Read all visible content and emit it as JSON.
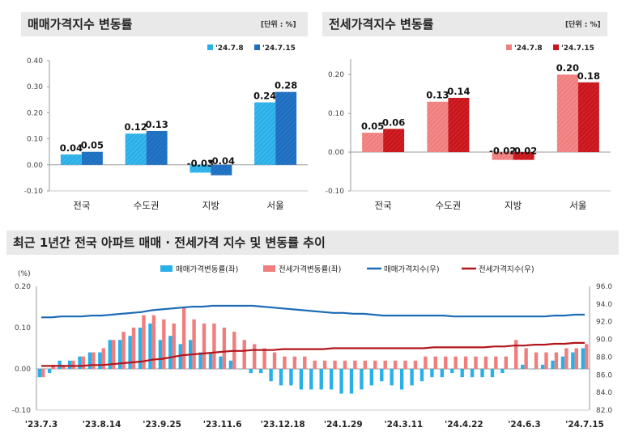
{
  "sale_panel": {
    "title": "매매가격지수 변동률",
    "unit": "[단위 : %]"
  },
  "jeonse_panel": {
    "title": "전세가격지수 변동률",
    "unit": "[단위 : %]"
  },
  "trend_panel": {
    "title": "최근 1년간 전국 아파트 매매 · 전세가격 지수 및 변동률 추이"
  },
  "colors": {
    "sale_prev": "#29b0e8",
    "sale_curr": "#1e6fc0",
    "jeonse_prev": "#f07e7e",
    "jeonse_curr": "#c9161d",
    "sale_index_line": "#1d6bb5",
    "jeonse_index_line": "#b2151b",
    "title_bg": "#e9e9e9"
  },
  "chart_data": [
    {
      "type": "bar",
      "categories": [
        "전국",
        "수도권",
        "지방",
        "서울"
      ],
      "series": [
        {
          "name": "'24.7.8",
          "values": [
            0.04,
            0.12,
            -0.03,
            0.24
          ]
        },
        {
          "name": "'24.7.15",
          "values": [
            0.05,
            0.13,
            -0.04,
            0.28
          ]
        }
      ],
      "data_labels": [
        [
          "0.04",
          "0.12",
          "-0.03",
          "0.24"
        ],
        [
          "0.05",
          "0.13",
          "-0.04",
          "0.28"
        ]
      ],
      "ylim": [
        -0.1,
        0.4
      ],
      "yticks": [
        "0.40",
        "0.30",
        "0.20",
        "0.10",
        "0.00",
        "-0.10"
      ],
      "ytick_values": [
        0.4,
        0.3,
        0.2,
        0.1,
        0.0,
        -0.1
      ],
      "legend": "top-right",
      "grid": false
    },
    {
      "type": "bar",
      "categories": [
        "전국",
        "수도권",
        "지방",
        "서울"
      ],
      "series": [
        {
          "name": "'24.7.8",
          "values": [
            0.05,
            0.13,
            -0.02,
            0.2
          ]
        },
        {
          "name": "'24.7.15",
          "values": [
            0.06,
            0.14,
            -0.02,
            0.18
          ]
        }
      ],
      "data_labels": [
        [
          "0.05",
          "0.13",
          "-0.02",
          "0.20"
        ],
        [
          "0.06",
          "0.14",
          "-0.02",
          "0.18"
        ]
      ],
      "ylim": [
        -0.1,
        0.24
      ],
      "yticks": [
        "0.20",
        "0.10",
        "0.00",
        "-0.10"
      ],
      "ytick_values": [
        0.2,
        0.1,
        0.0,
        -0.1
      ],
      "legend": "top-right",
      "grid": false
    },
    {
      "type": "bar",
      "y_unit": "(%)",
      "ylim": [
        -0.1,
        0.2
      ],
      "yticks": [
        "0.20",
        "0.10",
        "0.00",
        "-0.10"
      ],
      "ytick_values": [
        0.2,
        0.1,
        0.0,
        -0.1
      ],
      "y2lim": [
        82.0,
        96.0
      ],
      "y2ticks": [
        "96.0",
        "94.0",
        "92.0",
        "90.0",
        "88.0",
        "86.0",
        "84.0",
        "82.0"
      ],
      "y2tick_values": [
        96,
        94,
        92,
        90,
        88,
        86,
        84,
        82
      ],
      "xticks": [
        "'23.7.3",
        "'23.8.14",
        "'23.9.25",
        "'23.11.6",
        "'23.12.18",
        "'24.1.29",
        "'24.3.11",
        "'24.4.22",
        "'24.6.3",
        "'24.7.15"
      ],
      "xtick_index": [
        0,
        6,
        12,
        18,
        24,
        30,
        36,
        42,
        48,
        54
      ],
      "legend": "top",
      "grid": false,
      "series": [
        {
          "name": "매매가격변동률(좌)",
          "kind": "bar",
          "axis": "left",
          "values": [
            -0.02,
            -0.01,
            0.02,
            0.02,
            0.03,
            0.04,
            0.04,
            0.07,
            0.07,
            0.08,
            0.1,
            0.11,
            0.07,
            0.08,
            0.06,
            0.07,
            0.04,
            0.04,
            0.03,
            0.02,
            0.0,
            -0.01,
            -0.01,
            -0.03,
            -0.04,
            -0.04,
            -0.05,
            -0.05,
            -0.05,
            -0.05,
            -0.06,
            -0.06,
            -0.05,
            -0.04,
            -0.03,
            -0.04,
            -0.05,
            -0.04,
            -0.03,
            -0.02,
            -0.02,
            -0.01,
            -0.02,
            -0.02,
            -0.02,
            -0.02,
            -0.01,
            0.0,
            0.01,
            0.0,
            0.01,
            0.02,
            0.03,
            0.04,
            0.05
          ]
        },
        {
          "name": "전세가격변동률(좌)",
          "kind": "bar",
          "axis": "left",
          "values": [
            -0.02,
            0.01,
            0.01,
            0.02,
            0.03,
            0.04,
            0.05,
            0.07,
            0.09,
            0.1,
            0.13,
            0.13,
            0.12,
            0.11,
            0.15,
            0.12,
            0.11,
            0.11,
            0.1,
            0.09,
            0.07,
            0.06,
            0.05,
            0.04,
            0.03,
            0.03,
            0.03,
            0.02,
            0.02,
            0.02,
            0.02,
            0.02,
            0.02,
            0.02,
            0.02,
            0.02,
            0.02,
            0.02,
            0.03,
            0.03,
            0.03,
            0.03,
            0.03,
            0.03,
            0.03,
            0.03,
            0.03,
            0.07,
            0.05,
            0.04,
            0.04,
            0.04,
            0.05,
            0.05,
            0.06
          ]
        },
        {
          "name": "매매가격지수(우)",
          "kind": "line",
          "axis": "right",
          "values": [
            92.5,
            92.5,
            92.6,
            92.6,
            92.6,
            92.7,
            92.7,
            92.8,
            92.9,
            93.0,
            93.1,
            93.3,
            93.4,
            93.5,
            93.6,
            93.7,
            93.7,
            93.8,
            93.8,
            93.8,
            93.8,
            93.8,
            93.7,
            93.6,
            93.5,
            93.4,
            93.3,
            93.2,
            93.1,
            93.0,
            93.0,
            92.9,
            92.9,
            92.8,
            92.7,
            92.7,
            92.7,
            92.7,
            92.7,
            92.7,
            92.7,
            92.6,
            92.6,
            92.6,
            92.6,
            92.6,
            92.6,
            92.6,
            92.6,
            92.6,
            92.6,
            92.7,
            92.7,
            92.8,
            92.8
          ]
        },
        {
          "name": "전세가격지수(우)",
          "kind": "line",
          "axis": "right",
          "values": [
            87.0,
            87.0,
            87.0,
            87.0,
            87.0,
            87.1,
            87.1,
            87.2,
            87.3,
            87.4,
            87.5,
            87.7,
            87.8,
            88.0,
            88.2,
            88.3,
            88.4,
            88.5,
            88.6,
            88.7,
            88.7,
            88.8,
            88.8,
            88.8,
            88.9,
            88.9,
            88.9,
            88.9,
            88.9,
            89.0,
            89.0,
            89.0,
            89.0,
            89.0,
            89.0,
            89.0,
            89.0,
            89.0,
            89.0,
            89.1,
            89.1,
            89.1,
            89.1,
            89.1,
            89.1,
            89.2,
            89.2,
            89.3,
            89.3,
            89.4,
            89.4,
            89.5,
            89.5,
            89.6,
            89.6
          ]
        }
      ]
    }
  ]
}
